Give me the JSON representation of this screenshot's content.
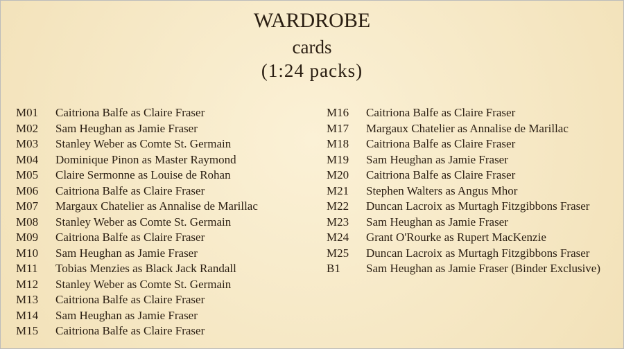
{
  "header": {
    "title": "WARDROBE",
    "subtitle": "cards",
    "odds": "(1:24 packs)"
  },
  "left": [
    [
      "M01",
      "Caitriona Balfe as Claire Fraser"
    ],
    [
      "M02",
      "Sam Heughan as Jamie Fraser"
    ],
    [
      "M03",
      "Stanley Weber as Comte St. Germain"
    ],
    [
      "M04",
      "Dominique Pinon as Master Raymond"
    ],
    [
      "M05",
      "Claire Sermonne as Louise de Rohan"
    ],
    [
      "M06",
      "Caitriona Balfe as Claire Fraser"
    ],
    [
      "M07",
      "Margaux Chatelier as Annalise de Marillac"
    ],
    [
      "M08",
      "Stanley Weber as Comte St. Germain"
    ],
    [
      "M09",
      "Caitriona Balfe as Claire Fraser"
    ],
    [
      "M10",
      "Sam Heughan as Jamie Fraser"
    ],
    [
      "M11",
      "Tobias Menzies as Black Jack Randall"
    ],
    [
      "M12",
      "Stanley Weber as Comte St. Germain"
    ],
    [
      "M13",
      "Caitriona Balfe as Claire Fraser"
    ],
    [
      "M14",
      "Sam Heughan as Jamie Fraser"
    ],
    [
      "M15",
      "Caitriona Balfe as Claire Fraser"
    ]
  ],
  "right": [
    [
      "M16",
      "Caitriona Balfe as Claire Fraser"
    ],
    [
      "M17",
      "Margaux Chatelier as Annalise de Marillac"
    ],
    [
      "M18",
      "Caitriona Balfe as Claire Fraser"
    ],
    [
      "M19",
      "Sam Heughan as Jamie Fraser"
    ],
    [
      "M20",
      "Caitriona Balfe as Claire Fraser"
    ],
    [
      "M21",
      "Stephen Walters as Angus Mhor"
    ],
    [
      "M22",
      "Duncan Lacroix as Murtagh Fitzgibbons Fraser"
    ],
    [
      "M23",
      "Sam Heughan as Jamie Fraser"
    ],
    [
      "M24",
      "Grant O'Rourke as Rupert MacKenzie"
    ],
    [
      "M25",
      "Duncan Lacroix as Murtagh Fitzgibbons Fraser"
    ],
    [
      "B1",
      "Sam Heughan as Jamie Fraser (Binder Exclusive)"
    ]
  ]
}
